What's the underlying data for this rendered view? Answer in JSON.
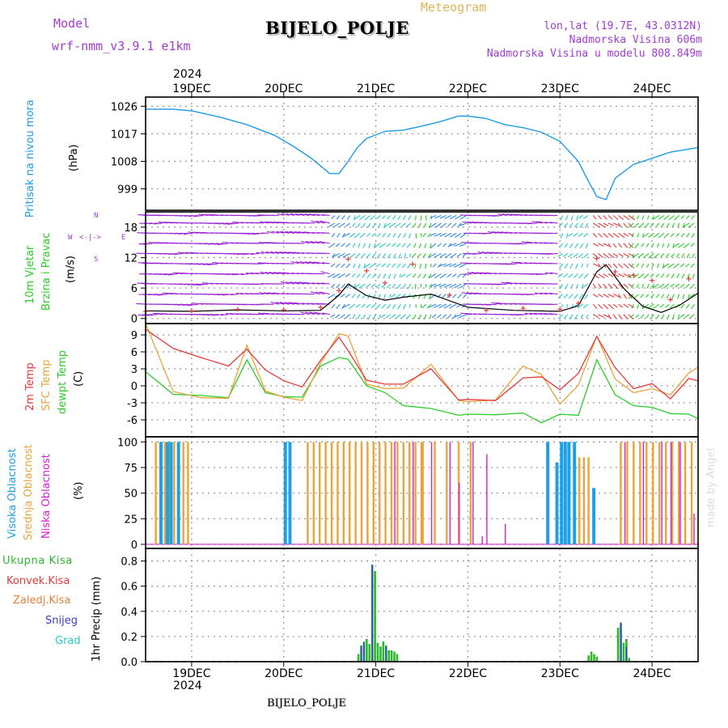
{
  "header": {
    "model_label": "Model",
    "model_name": "wrf-nmm_v3.9.1 e1km",
    "title": "BIJELO_POLJE",
    "meteogram": "Meteogram",
    "lonlat": "lon,lat (19.7E, 43.0312N)",
    "altitude": "Nadmorska Visina 606m",
    "model_altitude": "Nadmorska Visina u modelu 808.849m",
    "top_year": "2024",
    "bottom_year": "2024",
    "footer": "BIJELO_POLJE",
    "watermark": "made by Angel"
  },
  "colors": {
    "pressure": "#1e9be6",
    "wind_low": "#9a1fd6",
    "wind_mid": "#2d86e8",
    "wind_cyan": "#27c8c8",
    "wind_green": "#28cc28",
    "wind_red": "#e83838",
    "t2m": "#e53a3a",
    "sfc": "#e8a43a",
    "dew": "#2ccc2c",
    "high_cloud": "#1ea0e6",
    "mid_cloud": "#e8a53a",
    "low_cloud": "#d61ed6",
    "precip_total": "#2cb82c",
    "snow": "#3b3bd6"
  },
  "chart_data": [
    {
      "type": "line",
      "name": "pressure",
      "ylabel_1": "Pritisak na nivou mora",
      "ylabel_2": "(hPa)",
      "ylim": [
        992,
        1029
      ],
      "yticks": [
        999,
        1008,
        1017,
        1026
      ],
      "grid": true,
      "x_days": [
        18.5,
        18.8,
        19.0,
        19.3,
        19.6,
        19.9,
        20.1,
        20.3,
        20.5,
        20.6,
        20.7,
        20.8,
        20.9,
        21.1,
        21.3,
        21.5,
        21.7,
        21.9,
        22.0,
        22.2,
        22.4,
        22.6,
        22.8,
        23.0,
        23.2,
        23.3,
        23.4,
        23.5,
        23.6,
        23.8,
        24.0,
        24.2,
        24.5
      ],
      "values": [
        1025,
        1025,
        1024.5,
        1022.5,
        1020,
        1016.5,
        1013,
        1009,
        1004,
        1004,
        1008,
        1012.5,
        1015.5,
        1017.8,
        1018.2,
        1019.5,
        1021,
        1022.8,
        1022.8,
        1022,
        1020,
        1019,
        1017.5,
        1014.5,
        1008,
        1002,
        996.5,
        995.5,
        1002.5,
        1007,
        1009,
        1011,
        1012.5
      ]
    },
    {
      "type": "line",
      "name": "wind",
      "ylabel_1": "10m Vjetar",
      "ylabel_2": "Brzina i Pravac",
      "ylabel_3": "(m/s)",
      "compass": [
        "N",
        "W",
        "E",
        "S"
      ],
      "ylim": [
        -1,
        21
      ],
      "yticks": [
        0,
        6,
        12,
        18
      ],
      "grid": true,
      "x_days": [
        18.5,
        19.0,
        19.5,
        20.0,
        20.4,
        20.6,
        20.7,
        20.9,
        21.1,
        21.3,
        21.6,
        22.0,
        22.5,
        23.0,
        23.2,
        23.4,
        23.5,
        23.7,
        23.9,
        24.1,
        24.3,
        24.5
      ],
      "values": [
        1.5,
        1.4,
        1.7,
        1.5,
        1.6,
        4.6,
        6.8,
        4.5,
        3.6,
        4.2,
        4.8,
        2.2,
        1.6,
        1.4,
        2.5,
        9.2,
        10.6,
        5.8,
        2.4,
        1.2,
        2.6,
        5.0
      ],
      "gust_x_days": [
        18.5,
        19.0,
        19.5,
        20.0,
        20.4,
        20.6,
        20.7,
        20.9,
        21.1,
        21.4,
        21.8,
        22.2,
        22.6,
        23.0,
        23.2,
        23.4,
        23.6,
        23.8,
        24.0,
        24.2,
        24.4
      ],
      "gust_values": [
        1.4,
        1.5,
        1.8,
        1.7,
        2.2,
        5.5,
        11.7,
        9.4,
        7.0,
        10.7,
        4.6,
        1.6,
        2.0,
        1.8,
        3.0,
        11.8,
        9.2,
        8.5,
        7.5,
        3.7,
        7.8
      ]
    },
    {
      "type": "line",
      "name": "temperature",
      "ylabel_1": "2m Temp",
      "ylabel_2": "SFC Temp",
      "ylabel_3": "dewpt Temp",
      "ylabel_4": "(C)",
      "ylim": [
        -9,
        11
      ],
      "yticks": [
        -6,
        -3,
        0,
        3,
        6,
        9
      ],
      "grid": true,
      "x_days": [
        18.5,
        18.8,
        19.1,
        19.4,
        19.6,
        19.8,
        20.0,
        20.2,
        20.4,
        20.6,
        20.7,
        20.9,
        21.1,
        21.3,
        21.6,
        21.9,
        22.0,
        22.3,
        22.6,
        22.8,
        23.0,
        23.2,
        23.4,
        23.6,
        23.8,
        24.0,
        24.2,
        24.4,
        24.5
      ],
      "t2m": [
        10,
        6.6,
        5.0,
        3.5,
        6.5,
        2.8,
        0.9,
        -0.2,
        4.5,
        8.6,
        6.2,
        1.0,
        0.3,
        0.3,
        3.0,
        -2.5,
        -2.4,
        -2.6,
        1.4,
        1.6,
        -0.7,
        2.2,
        8.7,
        3.2,
        -0.5,
        0.4,
        -2.3,
        1.3,
        0.9
      ],
      "sfc": [
        11,
        -1.0,
        -2.1,
        -2.2,
        7.2,
        -0.9,
        -2.0,
        -2.6,
        4.0,
        9.2,
        8.8,
        0.3,
        -0.5,
        -0.4,
        3.8,
        -2.6,
        -2.8,
        -2.5,
        3.5,
        2.0,
        -3.2,
        0.1,
        8.8,
        1.2,
        -1.2,
        -0.5,
        -1.6,
        2.3,
        3.3
      ],
      "dew": [
        2.5,
        -1.5,
        -1.7,
        -2.1,
        4.6,
        -1.2,
        -1.9,
        -2.0,
        3.5,
        5.0,
        4.7,
        0.0,
        -1.2,
        -3.5,
        -4.0,
        -5.2,
        -5.0,
        -5.1,
        -4.8,
        -6.5,
        -5.0,
        -5.2,
        4.6,
        -1.6,
        -3.5,
        -3.8,
        -4.9,
        -5.0,
        -5.8
      ]
    },
    {
      "type": "bar",
      "name": "cloud",
      "ylabel_1": "Visoka Oblacnost",
      "ylabel_2": "Srednja Oblacnost",
      "ylabel_3": "Niska Oblacnost",
      "ylabel_4": "(%)",
      "ylim": [
        -4,
        105
      ],
      "yticks": [
        0,
        25,
        50,
        75,
        100
      ],
      "grid": true,
      "high": [
        [
          18.65,
          100
        ],
        [
          18.72,
          100
        ],
        [
          18.76,
          100
        ],
        [
          18.84,
          100
        ],
        [
          20.0,
          100
        ],
        [
          20.05,
          100
        ],
        [
          23.0,
          100
        ],
        [
          23.04,
          100
        ],
        [
          23.08,
          100
        ],
        [
          23.14,
          100
        ],
        [
          22.85,
          100
        ],
        [
          23.35,
          55
        ],
        [
          22.95,
          80
        ]
      ],
      "mid_groups": [
        [
          18.6,
          18.97,
          0.05,
          100
        ],
        [
          20.25,
          21.5,
          0.065,
          100
        ],
        [
          21.5,
          22.1,
          0.13,
          100
        ],
        [
          23.15,
          23.3,
          0.05,
          85
        ],
        [
          23.65,
          24.45,
          0.07,
          100
        ]
      ],
      "low": [
        [
          21.2,
          100
        ],
        [
          21.4,
          100
        ],
        [
          21.6,
          100
        ],
        [
          21.8,
          100
        ],
        [
          22.05,
          100
        ],
        [
          22.2,
          88
        ],
        [
          21.9,
          60
        ],
        [
          22.4,
          20
        ],
        [
          22.15,
          8
        ],
        [
          23.7,
          100
        ],
        [
          23.9,
          100
        ],
        [
          24.1,
          100
        ],
        [
          24.2,
          100
        ],
        [
          24.3,
          100
        ],
        [
          24.45,
          30
        ]
      ]
    },
    {
      "type": "bar",
      "name": "precip",
      "legend": [
        "Ukupna Kisa",
        "Konvek.Kisa",
        "Zaledj.Kisa",
        "Snijeg",
        "Grad"
      ],
      "ylabel": "1hr Precip (mm)",
      "ylim": [
        0,
        0.9
      ],
      "yticks": [
        0.0,
        0.2,
        0.4,
        0.6,
        0.8
      ],
      "grid": true,
      "x_days": [
        20.8,
        20.83,
        20.86,
        20.89,
        20.92,
        20.95,
        20.98,
        21.01,
        21.04,
        21.07,
        21.1,
        21.13,
        21.16,
        21.19,
        21.22,
        23.3,
        23.33,
        23.36,
        23.39,
        23.62,
        23.65,
        23.68,
        23.71,
        23.74
      ],
      "total": [
        0.06,
        0.13,
        0.16,
        0.18,
        0.14,
        0.77,
        0.72,
        0.15,
        0.12,
        0.16,
        0.13,
        0.09,
        0.09,
        0.08,
        0.06,
        0.05,
        0.08,
        0.06,
        0.04,
        0.27,
        0.31,
        0.15,
        0.18,
        0.03
      ],
      "snow": [
        0.0,
        0.12,
        0.15,
        0.0,
        0.0,
        0.77,
        0.0,
        0.0,
        0.0,
        0.0,
        0.12,
        0.0,
        0.0,
        0.0,
        0.0,
        0.0,
        0.0,
        0.0,
        0.0,
        0.0,
        0.31,
        0.0,
        0.12,
        0.0
      ]
    }
  ],
  "x_axis": {
    "day_labels": [
      "19DEC",
      "20DEC",
      "21DEC",
      "22DEC",
      "23DEC",
      "24DEC"
    ],
    "day_values": [
      19,
      20,
      21,
      22,
      23,
      24
    ],
    "xlim": [
      18.5,
      24.5
    ]
  }
}
